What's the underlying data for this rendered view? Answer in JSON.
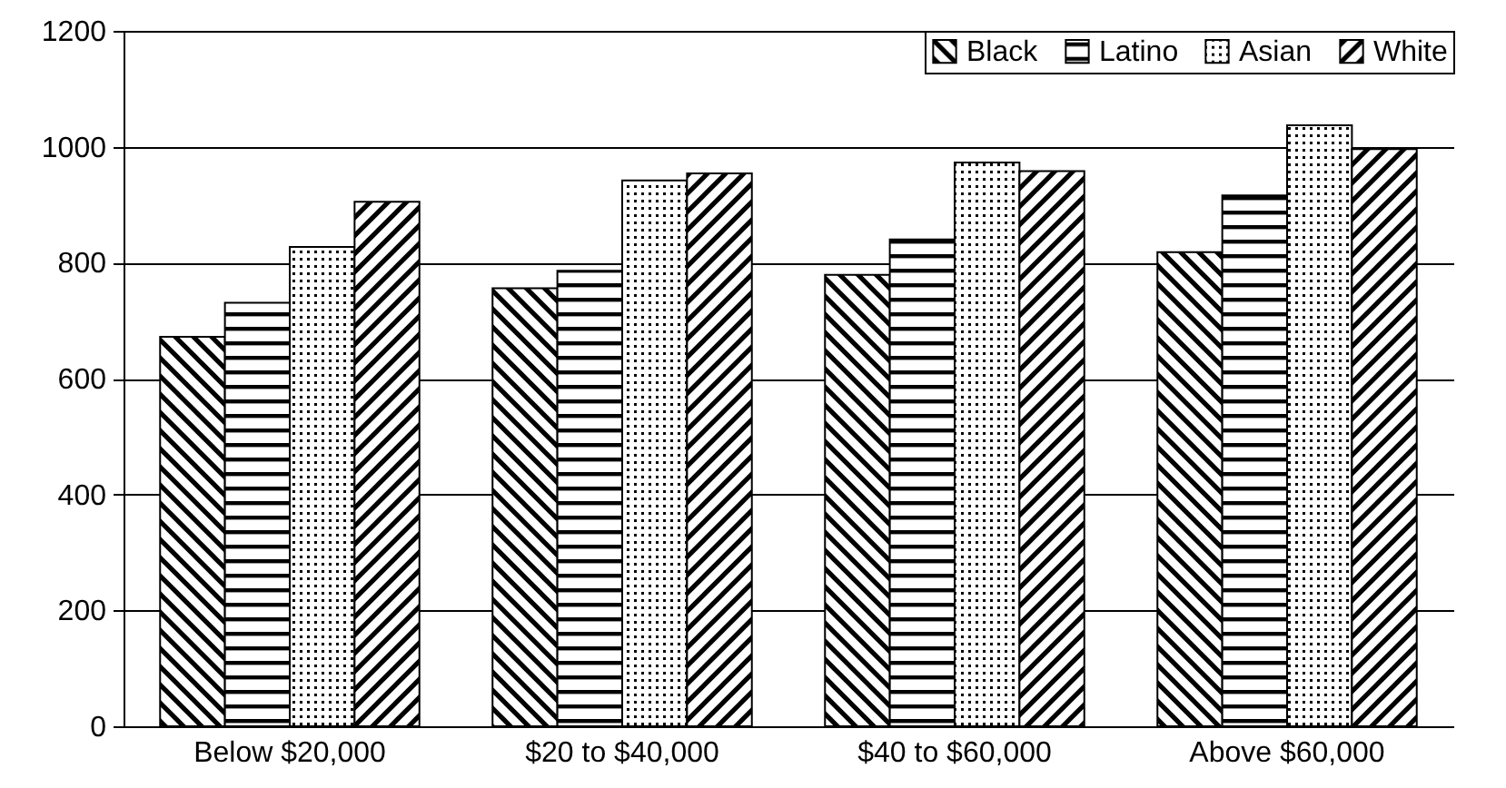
{
  "chart_data": {
    "type": "bar",
    "categories": [
      "Below $20,000",
      "$20 to $40,000",
      "$40 to $60,000",
      "Above $60,000"
    ],
    "series": [
      {
        "name": "Black",
        "color": "#000000",
        "values": [
          672,
          756,
          779,
          818
        ]
      },
      {
        "name": "Latino",
        "color": "#000000",
        "values": [
          731,
          786,
          840,
          916
        ]
      },
      {
        "name": "Asian",
        "color": "#000000",
        "values": [
          827,
          942,
          973,
          1037
        ]
      },
      {
        "name": "White",
        "color": "#000000",
        "values": [
          905,
          954,
          958,
          996
        ]
      }
    ],
    "ylim": [
      0,
      1200
    ],
    "yticks": [
      0,
      200,
      400,
      600,
      800,
      1000,
      1200
    ],
    "grid": "y",
    "legend": "top right"
  }
}
